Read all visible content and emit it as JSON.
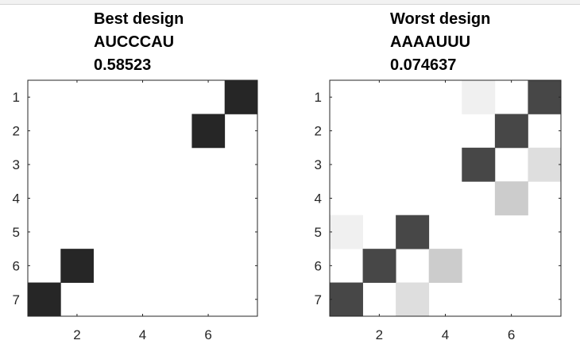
{
  "chart_data": [
    {
      "type": "heatmap",
      "title": [
        "Best design",
        "AUCCCAU",
        "0.58523"
      ],
      "grid_size": [
        7,
        7
      ],
      "x_ticks": [
        2,
        4,
        6
      ],
      "y_ticks": [
        1,
        2,
        3,
        4,
        5,
        6,
        7
      ],
      "xlim": [
        0.5,
        7.5
      ],
      "ylim": [
        0.5,
        7.5
      ],
      "y_reversed": true,
      "colormap": "gray-reversed",
      "cells": [
        {
          "row": 1,
          "col": 7,
          "value": 0.85
        },
        {
          "row": 2,
          "col": 6,
          "value": 0.85
        },
        {
          "row": 6,
          "col": 2,
          "value": 0.85
        },
        {
          "row": 7,
          "col": 1,
          "value": 0.85
        }
      ]
    },
    {
      "type": "heatmap",
      "title": [
        "Worst design",
        "AAAAUUU",
        "0.074637"
      ],
      "grid_size": [
        7,
        7
      ],
      "x_ticks": [
        2,
        4,
        6
      ],
      "y_ticks": [
        1,
        2,
        3,
        4,
        5,
        6,
        7
      ],
      "xlim": [
        0.5,
        7.5
      ],
      "ylim": [
        0.5,
        7.5
      ],
      "y_reversed": true,
      "colormap": "gray-reversed",
      "cells": [
        {
          "row": 1,
          "col": 5,
          "value": 0.06
        },
        {
          "row": 1,
          "col": 7,
          "value": 0.72
        },
        {
          "row": 2,
          "col": 6,
          "value": 0.72
        },
        {
          "row": 3,
          "col": 5,
          "value": 0.72
        },
        {
          "row": 3,
          "col": 7,
          "value": 0.13
        },
        {
          "row": 4,
          "col": 6,
          "value": 0.2
        },
        {
          "row": 5,
          "col": 1,
          "value": 0.06
        },
        {
          "row": 5,
          "col": 3,
          "value": 0.72
        },
        {
          "row": 6,
          "col": 2,
          "value": 0.72
        },
        {
          "row": 6,
          "col": 4,
          "value": 0.2
        },
        {
          "row": 7,
          "col": 1,
          "value": 0.72
        },
        {
          "row": 7,
          "col": 3,
          "value": 0.13
        }
      ]
    }
  ]
}
